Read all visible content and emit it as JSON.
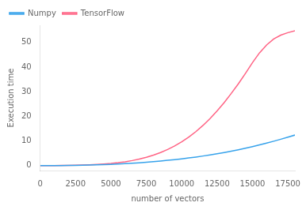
{
  "chart_data": {
    "type": "line",
    "xlabel": "number of vectors",
    "ylabel": "Execution time",
    "x": [
      0,
      500,
      1000,
      1500,
      2000,
      2500,
      3000,
      3500,
      4000,
      4500,
      5000,
      5500,
      6000,
      6500,
      7000,
      7500,
      8000,
      8500,
      9000,
      9500,
      10000,
      10500,
      11000,
      11500,
      12000,
      12500,
      13000,
      13500,
      14000,
      14500,
      15000,
      15500,
      16000,
      16500,
      17000,
      17500,
      18000
    ],
    "series": [
      {
        "name": "Numpy",
        "values": [
          0.0,
          0.01,
          0.02,
          0.04,
          0.07,
          0.11,
          0.16,
          0.22,
          0.3,
          0.4,
          0.52,
          0.65,
          0.8,
          0.97,
          1.16,
          1.37,
          1.6,
          1.85,
          2.13,
          2.43,
          2.75,
          3.1,
          3.48,
          3.89,
          4.33,
          4.8,
          5.3,
          5.84,
          6.42,
          7.04,
          7.7,
          8.4,
          9.14,
          9.9,
          10.7,
          11.53,
          12.4
        ]
      },
      {
        "name": "TensorFlow",
        "values": [
          0.0,
          0.01,
          0.03,
          0.06,
          0.1,
          0.16,
          0.24,
          0.34,
          0.47,
          0.65,
          0.88,
          1.18,
          1.56,
          2.05,
          2.65,
          3.38,
          4.25,
          5.3,
          6.53,
          7.98,
          9.67,
          11.6,
          13.8,
          16.3,
          19.1,
          22.2,
          25.6,
          29.3,
          33.2,
          37.4,
          41.8,
          45.8,
          49.0,
          51.4,
          53.0,
          54.0,
          54.8
        ]
      }
    ],
    "xlim": [
      0,
      18000
    ],
    "ylim": [
      -2,
      57
    ],
    "xticks": [
      0,
      2500,
      5000,
      7500,
      10000,
      12500,
      15000,
      17500
    ],
    "yticks": [
      0,
      10,
      20,
      30,
      40,
      50
    ],
    "legend": "upper left",
    "grid": false
  }
}
